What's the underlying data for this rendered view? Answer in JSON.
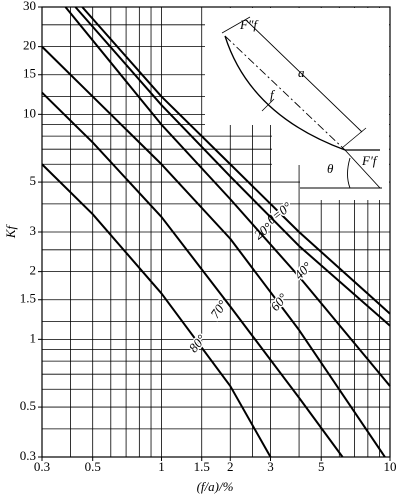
{
  "chart_data": {
    "type": "line",
    "x_label": "(f/a)/%",
    "y_label": "Kf",
    "log_x": true,
    "log_y": true,
    "grid": true,
    "xlim": [
      0.3,
      10
    ],
    "ylim": [
      0.3,
      30
    ],
    "xticks": [
      0.3,
      0.5,
      1,
      1.5,
      2,
      3,
      5,
      10
    ],
    "yticks": [
      0.3,
      0.5,
      1,
      1.5,
      2,
      3,
      5,
      10,
      15,
      20,
      30
    ],
    "xgrid": [
      0.3,
      0.4,
      0.5,
      0.6,
      0.7,
      0.8,
      0.9,
      1,
      1.5,
      2,
      2.5,
      3,
      4,
      5,
      6,
      7,
      8,
      9,
      10
    ],
    "ygrid": [
      0.3,
      0.4,
      0.5,
      0.6,
      0.7,
      0.8,
      0.9,
      1,
      1.2,
      1.5,
      2,
      2.5,
      3,
      4,
      5,
      6,
      7,
      8,
      9,
      10,
      12,
      15,
      20,
      25,
      30
    ],
    "series": [
      {
        "name": "θ=0°",
        "color": "#000",
        "x": [
          0.45,
          1,
          2,
          4,
          10
        ],
        "values": [
          30,
          12,
          6,
          3,
          1.3
        ]
      },
      {
        "name": "20°",
        "color": "#000",
        "x": [
          0.42,
          1,
          2,
          4,
          10
        ],
        "values": [
          30,
          11,
          5.3,
          2.6,
          1.15
        ]
      },
      {
        "name": "40°",
        "color": "#000",
        "x": [
          0.38,
          1,
          2,
          4,
          10
        ],
        "values": [
          30,
          9,
          4.2,
          1.9,
          0.62
        ]
      },
      {
        "name": "60°",
        "color": "#000",
        "x": [
          0.3,
          0.5,
          1,
          2,
          4,
          9.5
        ],
        "values": [
          20,
          12,
          6,
          2.8,
          1.1,
          0.3
        ]
      },
      {
        "name": "70°",
        "color": "#000",
        "x": [
          0.3,
          0.5,
          1,
          2,
          4,
          6.2
        ],
        "values": [
          12.5,
          7.5,
          3.5,
          1.4,
          0.55,
          0.3
        ]
      },
      {
        "name": "80°",
        "color": "#000",
        "x": [
          0.3,
          0.5,
          1,
          2,
          3
        ],
        "values": [
          6,
          3.6,
          1.6,
          0.62,
          0.3
        ]
      }
    ],
    "annotations": [
      "F″f",
      "a",
      "f",
      "θ",
      "F′f"
    ]
  }
}
